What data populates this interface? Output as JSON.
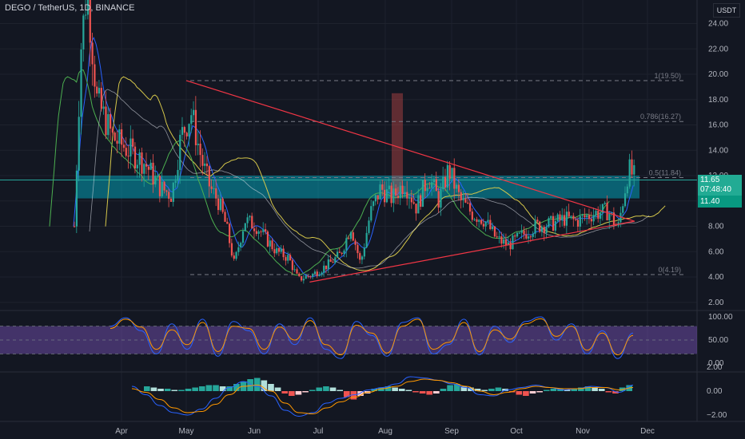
{
  "header": {
    "symbol": "DEGO / TetherUS, 1D, BINANCE",
    "currency": "USDT"
  },
  "price_tags": {
    "last_price": "11.65",
    "countdown": "07:48:40",
    "zone_price": "11.40"
  },
  "colors": {
    "background": "#131722",
    "up": "#26a69a",
    "down": "#ef5350",
    "triangle": "#f23645",
    "zone": "#00bcd4",
    "rsi_band": "#7e57c2",
    "k_line": "#2962ff",
    "d_line": "#ff9800",
    "ma_blue": "#2962ff",
    "ma_green": "#4caf50",
    "ma_yellow": "#d4c64a"
  },
  "chart_data": [
    {
      "type": "candlestick",
      "title": "DEGO / TetherUS, 1D, BINANCE",
      "x_ticks": [
        "Apr",
        "May",
        "Jun",
        "Jul",
        "Aug",
        "Sep",
        "Oct",
        "Nov",
        "Dec"
      ],
      "y_ticks": [
        2.0,
        4.0,
        6.0,
        8.0,
        10.0,
        12.0,
        14.0,
        16.0,
        18.0,
        20.0,
        22.0,
        24.0
      ],
      "ylim": [
        1.0,
        25.5
      ],
      "ohlc_approx": [
        {
          "month": "Mar",
          "open": 7.5,
          "high": 26,
          "low": 7.2,
          "close": 19
        },
        {
          "month": "Apr",
          "open": 19,
          "high": 27,
          "low": 9.8,
          "close": 11
        },
        {
          "month": "May",
          "open": 11,
          "high": 19.5,
          "low": 8.5,
          "close": 10
        },
        {
          "month": "Jun",
          "open": 10,
          "high": 10.5,
          "low": 3.5,
          "close": 4.2
        },
        {
          "month": "Jul",
          "open": 4.2,
          "high": 11,
          "low": 4.0,
          "close": 10.5
        },
        {
          "month": "Aug",
          "open": 10.5,
          "high": 13.5,
          "low": 9.0,
          "close": 10
        },
        {
          "month": "Sep",
          "open": 10,
          "high": 10.5,
          "low": 6.2,
          "close": 7.4
        },
        {
          "month": "Oct",
          "open": 7.4,
          "high": 9.5,
          "low": 7.0,
          "close": 9.0
        },
        {
          "month": "Nov",
          "open": 9.0,
          "high": 13.8,
          "low": 7.5,
          "close": 11.65
        }
      ],
      "last_price": 11.65,
      "fibonacci": [
        {
          "label": "1(19.50)",
          "value": 19.5
        },
        {
          "label": "0.786(16.27)",
          "value": 16.27
        },
        {
          "label": "0.5(11.84)",
          "value": 11.84
        },
        {
          "label": "0(4.19)",
          "value": 4.19
        }
      ],
      "support_zone": [
        10.2,
        12.0
      ],
      "triangle_lines": [
        {
          "from": {
            "date": "May 1",
            "price": 19.5
          },
          "to": {
            "date": "Nov 25",
            "price": 8.4
          }
        },
        {
          "from": {
            "date": "Jun 27",
            "price": 3.6
          },
          "to": {
            "date": "Nov 25",
            "price": 8.4
          }
        }
      ]
    },
    {
      "type": "line",
      "title": "Stochastic RSI",
      "y_ticks": [
        0.0,
        50.0,
        100.0
      ],
      "ylim": [
        -5,
        110
      ],
      "band": [
        20,
        80
      ],
      "series": [
        {
          "legend": "",
          "values": [
            80,
            98,
            70,
            20,
            85,
            30,
            95,
            15,
            90,
            70,
            20,
            85,
            40,
            98,
            30,
            10,
            90,
            60,
            15,
            88,
            98,
            20,
            40,
            95,
            18,
            80,
            45,
            90,
            100,
            50,
            85,
            20,
            70,
            10,
            65
          ]
        },
        {
          "legend": "",
          "values": [
            75,
            95,
            78,
            30,
            72,
            40,
            88,
            25,
            80,
            75,
            30,
            78,
            50,
            92,
            40,
            18,
            82,
            65,
            22,
            80,
            95,
            30,
            45,
            88,
            25,
            72,
            52,
            85,
            96,
            58,
            80,
            28,
            65,
            18,
            60
          ]
        }
      ]
    },
    {
      "type": "bar",
      "title": "MACD",
      "y_ticks": [
        -2.0,
        0.0,
        2.0
      ],
      "ylim": [
        -2.6,
        2.2
      ],
      "histogram": [
        0.4,
        0.3,
        0.2,
        0.2,
        0.1,
        0.1,
        0.2,
        0.3,
        0.4,
        0.5,
        0.5,
        0.4,
        0.4,
        0.6,
        0.8,
        1.0,
        1.1,
        0.9,
        0.6,
        0.3,
        -0.2,
        -0.4,
        -0.3,
        -0.1,
        0.1,
        0.3,
        0.4,
        0.3,
        0.1,
        -0.5,
        -0.7,
        -0.4,
        -0.2,
        0.2,
        0.3,
        0.4,
        0.3,
        0.2,
        0.1,
        -0.1,
        -0.2,
        -0.3,
        -0.2,
        0.2,
        0.5,
        0.6,
        0.4,
        0.3,
        0.2,
        0.1,
        0.2,
        0.3,
        0.2,
        -0.1,
        -0.3,
        -0.4,
        -0.2,
        -0.1,
        0.1,
        0.2,
        0.2,
        0.1,
        0.2,
        0.3,
        0.4,
        0.3,
        0.2,
        -0.1,
        -0.2,
        0.3,
        0.5
      ],
      "series": [
        {
          "legend": "",
          "values": [
            0.4,
            -0.3,
            -1.2,
            -1.8,
            -2.0,
            -1.5,
            -0.6,
            0.3,
            0.8,
            0.4,
            -0.4,
            -1.6,
            -2.1,
            -1.8,
            -1.0,
            -0.6,
            -0.3,
            0.1,
            0.3,
            0.6,
            1.2,
            1.1,
            0.9,
            0.6,
            0.3,
            -0.3,
            -0.4,
            0.1,
            0.3,
            0.5,
            0.3,
            0.1,
            0.2,
            0.4,
            0.3,
            -0.1,
            0.5
          ]
        },
        {
          "legend": "",
          "values": [
            0.2,
            -0.1,
            -0.7,
            -1.4,
            -1.8,
            -1.7,
            -1.1,
            -0.3,
            0.4,
            0.5,
            0.0,
            -1.0,
            -1.8,
            -1.9,
            -1.4,
            -0.9,
            -0.5,
            -0.1,
            0.2,
            0.4,
            0.8,
            1.0,
            0.9,
            0.7,
            0.4,
            0.0,
            -0.3,
            -0.1,
            0.2,
            0.4,
            0.3,
            0.2,
            0.2,
            0.3,
            0.3,
            0.1,
            0.3
          ]
        }
      ]
    }
  ]
}
